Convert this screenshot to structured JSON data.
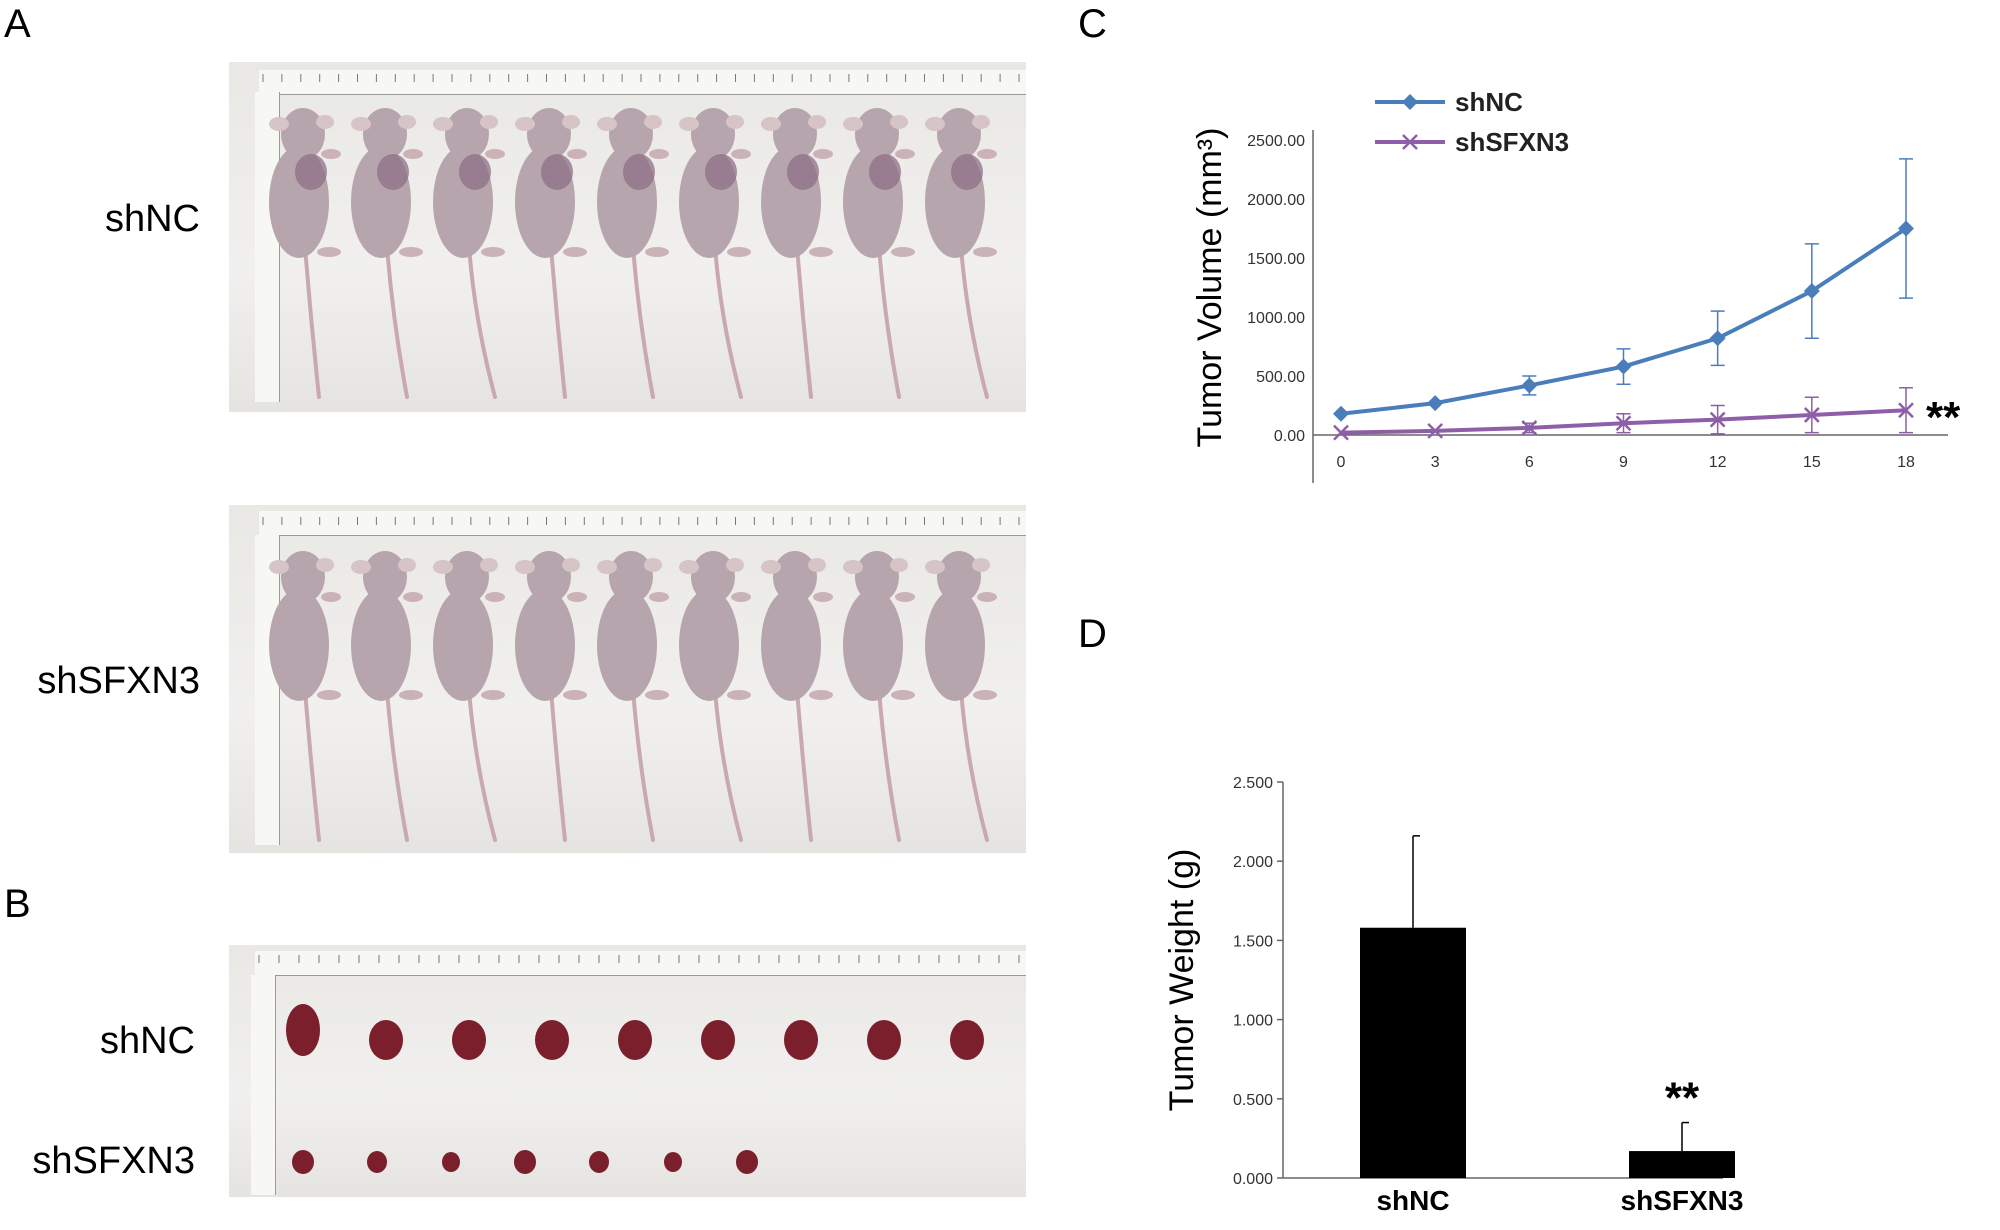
{
  "panels": {
    "A": {
      "letter": "A",
      "rows": [
        {
          "label": "shNC",
          "mice_count": 9
        },
        {
          "label": "shSFXN3",
          "mice_count": 9
        }
      ]
    },
    "B": {
      "letter": "B",
      "rows": [
        {
          "label": "shNC",
          "tumor_count": 9,
          "tumor_size": "large"
        },
        {
          "label": "shSFXN3",
          "tumor_count": 7,
          "tumor_size": "small"
        }
      ]
    },
    "C": {
      "letter": "C"
    },
    "D": {
      "letter": "D"
    }
  },
  "colors": {
    "shNC_line": "#4a7ebb",
    "shSFXN3_line": "#8e5fa8",
    "bar": "#000000",
    "mouse_skin": "#b7a5ad",
    "tumor": "#7a1f2b"
  },
  "chart_data": [
    {
      "type": "line",
      "panel": "C",
      "ylabel": "Tumor Volume (mm³)",
      "xlabel": "",
      "x": [
        0,
        3,
        6,
        9,
        12,
        15,
        18
      ],
      "ylim": [
        0,
        2500
      ],
      "yticks": [
        "0.00",
        "500.00",
        "1000.00",
        "1500.00",
        "2000.00",
        "2500.00"
      ],
      "xticks": [
        "0",
        "3",
        "6",
        "9",
        "12",
        "15",
        "18"
      ],
      "legend_position": "top-left",
      "series": [
        {
          "name": "shNC",
          "marker": "diamond",
          "values": [
            180,
            270,
            420,
            580,
            820,
            1220,
            1750
          ],
          "errors": [
            0,
            0,
            80,
            150,
            230,
            400,
            590
          ]
        },
        {
          "name": "shSFXN3",
          "marker": "x",
          "values": [
            20,
            35,
            60,
            100,
            130,
            170,
            210
          ],
          "errors": [
            0,
            0,
            40,
            80,
            120,
            150,
            190
          ]
        }
      ],
      "annotation": "**"
    },
    {
      "type": "bar",
      "panel": "D",
      "ylabel": "Tumor Weight (g)",
      "categories": [
        "shNC",
        "shSFXN3"
      ],
      "values": [
        1.58,
        0.17
      ],
      "errors": [
        0.58,
        0.18
      ],
      "ylim": [
        0,
        2.5
      ],
      "yticks": [
        "0.000",
        "0.500",
        "1.000",
        "1.500",
        "2.000",
        "2.500"
      ],
      "annotation": "**"
    }
  ]
}
